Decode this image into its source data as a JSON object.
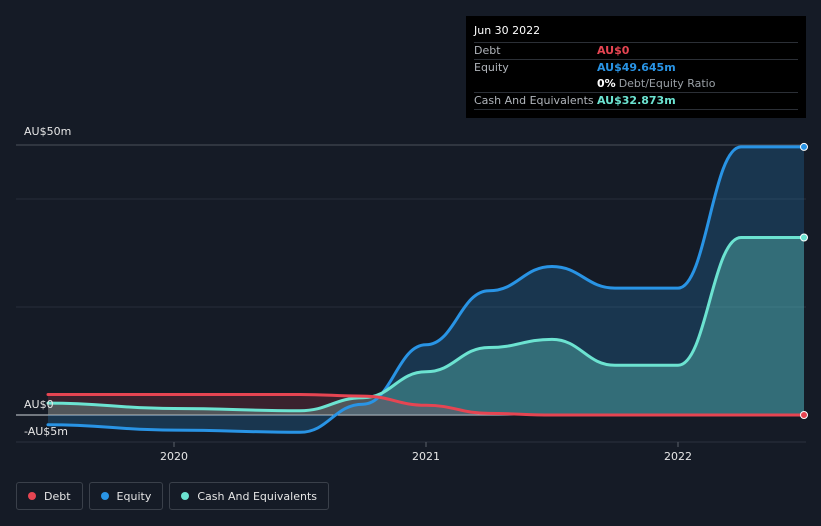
{
  "chart_data": {
    "type": "area",
    "title": "",
    "xlabel": "",
    "ylabel": "",
    "ylim": [
      -5,
      50
    ],
    "xlim": [
      2019.5,
      2022.5
    ],
    "y_tick_labels": [
      {
        "value": 50,
        "label": "AU$50m"
      },
      {
        "value": 0,
        "label": "AU$0"
      },
      {
        "value": -5,
        "label": "-AU$5m"
      }
    ],
    "x_ticks": [
      {
        "value": 2020,
        "label": "2020"
      },
      {
        "value": 2021,
        "label": "2021"
      },
      {
        "value": 2022,
        "label": "2022"
      }
    ],
    "gridlines_y": [
      50,
      40,
      20
    ],
    "series": [
      {
        "name": "Debt",
        "color": "#e64552",
        "x": [
          2019.5,
          2020.0,
          2020.5,
          2020.75,
          2021.0,
          2021.25,
          2021.5,
          2021.75,
          2022.0,
          2022.25,
          2022.5
        ],
        "values": [
          3.8,
          3.8,
          3.8,
          3.5,
          1.8,
          0.3,
          0.0,
          0.0,
          0.0,
          0.0,
          0.0
        ]
      },
      {
        "name": "Equity",
        "color": "#2994e5",
        "x": [
          2019.5,
          2020.0,
          2020.5,
          2020.75,
          2021.0,
          2021.25,
          2021.5,
          2021.75,
          2022.0,
          2022.25,
          2022.5
        ],
        "values": [
          -1.8,
          -2.8,
          -3.2,
          2.0,
          13.0,
          23.0,
          27.5,
          23.5,
          23.5,
          49.645,
          49.645
        ]
      },
      {
        "name": "Cash And Equivalents",
        "color": "#6ce3d1",
        "x": [
          2019.5,
          2020.0,
          2020.5,
          2020.75,
          2021.0,
          2021.25,
          2021.5,
          2021.75,
          2022.0,
          2022.25,
          2022.5
        ],
        "values": [
          2.2,
          1.2,
          0.8,
          3.2,
          8.0,
          12.5,
          14.0,
          9.2,
          9.2,
          32.873,
          32.873
        ]
      }
    ]
  },
  "tooltip": {
    "date": "Jun 30 2022",
    "debt_label": "Debt",
    "debt_value": "AU$0",
    "equity_label": "Equity",
    "equity_value": "AU$49.645m",
    "ratio_pct": "0%",
    "ratio_text": "Debt/Equity Ratio",
    "cash_label": "Cash And Equivalents",
    "cash_value": "AU$32.873m"
  },
  "legend": {
    "debt": "Debt",
    "equity": "Equity",
    "cash": "Cash And Equivalents"
  },
  "colors": {
    "background": "#151b26",
    "debt": "#e64552",
    "equity": "#2994e5",
    "cash": "#6ce3d1"
  }
}
